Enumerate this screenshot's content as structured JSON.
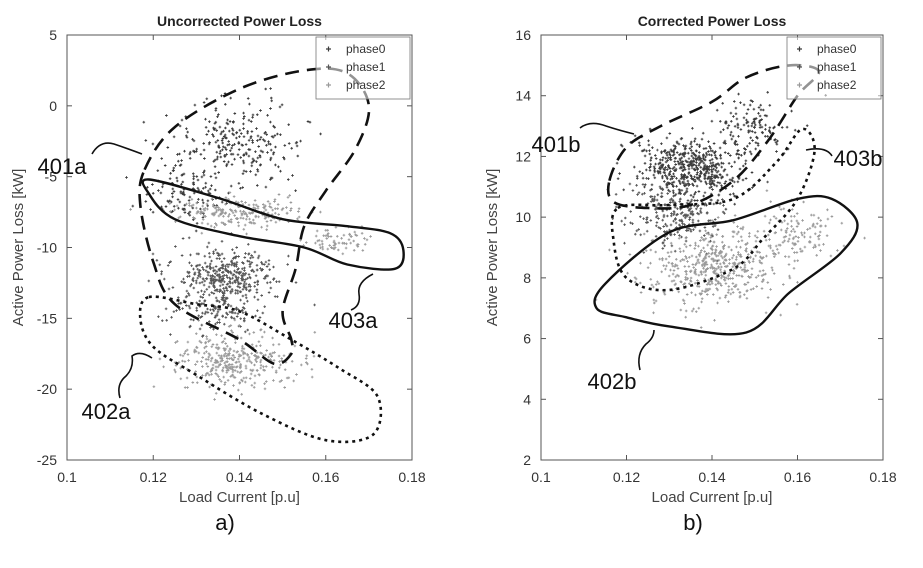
{
  "chart_data": [
    {
      "type": "scatter",
      "title": "Uncorrected Power Loss",
      "xlabel": "Load Current [p.u]",
      "ylabel": "Active Power Loss [kW]",
      "xlim": [
        0.1,
        0.18
      ],
      "ylim": [
        -25,
        5
      ],
      "xticks": [
        0.1,
        0.12,
        0.14,
        0.16,
        0.18
      ],
      "yticks": [
        -25,
        -20,
        -15,
        -10,
        -5,
        0,
        5
      ],
      "legend": {
        "position": "top-right",
        "entries": [
          "phase0",
          "phase1",
          "phase2"
        ]
      },
      "series": [
        {
          "name": "phase0",
          "color": "#3a3a3a",
          "clusters": [
            {
              "center": [
                0.14,
                -2.5
              ],
              "spread": [
                0.014,
                2.8
              ],
              "n": 260
            },
            {
              "center": [
                0.128,
                -6
              ],
              "spread": [
                0.008,
                2.0
              ],
              "n": 120
            }
          ]
        },
        {
          "name": "phase1",
          "color": "#555555",
          "clusters": [
            {
              "center": [
                0.137,
                -12
              ],
              "spread": [
                0.011,
                1.6
              ],
              "n": 380
            },
            {
              "center": [
                0.135,
                -14.5
              ],
              "spread": [
                0.01,
                1.3
              ],
              "n": 140
            }
          ]
        },
        {
          "name": "phase2",
          "color": "#9a9a9a",
          "clusters": [
            {
              "center": [
                0.138,
                -18
              ],
              "spread": [
                0.012,
                1.8
              ],
              "n": 340
            },
            {
              "center": [
                0.14,
                -7.5
              ],
              "spread": [
                0.014,
                0.9
              ],
              "n": 220
            },
            {
              "center": [
                0.163,
                -9.5
              ],
              "spread": [
                0.007,
                0.8
              ],
              "n": 70
            }
          ]
        }
      ],
      "annotations": [
        {
          "label": "401a",
          "style": "dashed",
          "x": 0.105,
          "y": -4.0
        },
        {
          "label": "402a",
          "style": "dotted",
          "x": 0.113,
          "y": -21.2
        },
        {
          "label": "403a",
          "style": "solid",
          "x": 0.1565,
          "y": -16.4
        }
      ],
      "regions": [
        {
          "style": "dashed",
          "points": [
            [
              0.118,
              -4.5
            ],
            [
              0.125,
              -1.5
            ],
            [
              0.14,
              1.2
            ],
            [
              0.155,
              2.5
            ],
            [
              0.165,
              2.3
            ],
            [
              0.17,
              0
            ],
            [
              0.167,
              -3
            ],
            [
              0.16,
              -6
            ],
            [
              0.155,
              -8.5
            ],
            [
              0.153,
              -11.5
            ],
            [
              0.15,
              -14.5
            ],
            [
              0.152,
              -16.5
            ],
            [
              0.152,
              -17.5
            ],
            [
              0.148,
              -18.2
            ],
            [
              0.14,
              -16.5
            ],
            [
              0.125,
              -14
            ],
            [
              0.12,
              -11
            ],
            [
              0.117,
              -7
            ]
          ]
        },
        {
          "style": "dotted",
          "points": [
            [
              0.119,
              -13.5
            ],
            [
              0.13,
              -14
            ],
            [
              0.14,
              -14.5
            ],
            [
              0.152,
              -16.5
            ],
            [
              0.163,
              -18.5
            ],
            [
              0.172,
              -20.5
            ],
            [
              0.171,
              -23.2
            ],
            [
              0.16,
              -23.6
            ],
            [
              0.145,
              -21.7
            ],
            [
              0.13,
              -19
            ],
            [
              0.12,
              -17
            ],
            [
              0.117,
              -15
            ]
          ]
        },
        {
          "style": "solid",
          "points": [
            [
              0.119,
              -5.2
            ],
            [
              0.135,
              -6.5
            ],
            [
              0.15,
              -8.0
            ],
            [
              0.165,
              -8.5
            ],
            [
              0.175,
              -9.0
            ],
            [
              0.178,
              -10.2
            ],
            [
              0.176,
              -11.5
            ],
            [
              0.165,
              -11.2
            ],
            [
              0.155,
              -10.0
            ],
            [
              0.14,
              -9.2
            ],
            [
              0.125,
              -8.0
            ],
            [
              0.119,
              -6.2
            ]
          ]
        }
      ],
      "panel_label": "a)"
    },
    {
      "type": "scatter",
      "title": "Corrected Power Loss",
      "xlabel": "Load Current [p.u]",
      "ylabel": "Active Power Loss [kW]",
      "xlim": [
        0.1,
        0.18
      ],
      "ylim": [
        2,
        16
      ],
      "xticks": [
        0.1,
        0.12,
        0.14,
        0.16,
        0.18
      ],
      "yticks": [
        2,
        4,
        6,
        8,
        10,
        12,
        14,
        16
      ],
      "legend": {
        "position": "top-right",
        "entries": [
          "phase0",
          "phase1",
          "phase2"
        ]
      },
      "series": [
        {
          "name": "phase0",
          "color": "#3a3a3a",
          "clusters": [
            {
              "center": [
                0.135,
                11.6
              ],
              "spread": [
                0.011,
                0.9
              ],
              "n": 520
            },
            {
              "center": [
                0.15,
                13.0
              ],
              "spread": [
                0.008,
                0.9
              ],
              "n": 130
            }
          ]
        },
        {
          "name": "phase1",
          "color": "#555555",
          "clusters": [
            {
              "center": [
                0.132,
                10.2
              ],
              "spread": [
                0.01,
                1.0
              ],
              "n": 260
            }
          ]
        },
        {
          "name": "phase2",
          "color": "#9a9a9a",
          "clusters": [
            {
              "center": [
                0.14,
                8.3
              ],
              "spread": [
                0.014,
                1.1
              ],
              "n": 480
            },
            {
              "center": [
                0.16,
                9.5
              ],
              "spread": [
                0.009,
                0.9
              ],
              "n": 120
            }
          ]
        }
      ],
      "annotations": [
        {
          "label": "401b",
          "style": "dashed",
          "x": 0.104,
          "y": 12.4
        },
        {
          "label": "402b",
          "style": "solid",
          "x": 0.1175,
          "y": 4.8
        },
        {
          "label": "403b",
          "style": "dotted",
          "x": 0.168,
          "y": 11.0
        }
      ],
      "regions": [
        {
          "style": "dashed",
          "points": [
            [
              0.116,
              11.2
            ],
            [
              0.12,
              12.3
            ],
            [
              0.128,
              13.0
            ],
            [
              0.14,
              13.8
            ],
            [
              0.148,
              14.6
            ],
            [
              0.158,
              15.0
            ],
            [
              0.165,
              14.8
            ],
            [
              0.16,
              14.0
            ],
            [
              0.153,
              12.5
            ],
            [
              0.145,
              11.2
            ],
            [
              0.135,
              10.4
            ],
            [
              0.125,
              10.3
            ],
            [
              0.117,
              10.5
            ]
          ]
        },
        {
          "style": "dotted",
          "points": [
            [
              0.118,
              10.3
            ],
            [
              0.13,
              10.4
            ],
            [
              0.145,
              10.6
            ],
            [
              0.155,
              11.8
            ],
            [
              0.161,
              12.9
            ],
            [
              0.164,
              12.2
            ],
            [
              0.16,
              10.6
            ],
            [
              0.152,
              9.3
            ],
            [
              0.145,
              8.3
            ],
            [
              0.13,
              7.6
            ],
            [
              0.12,
              8.0
            ],
            [
              0.117,
              9.2
            ]
          ]
        },
        {
          "style": "solid",
          "points": [
            [
              0.115,
              7.8
            ],
            [
              0.13,
              9.5
            ],
            [
              0.145,
              9.9
            ],
            [
              0.16,
              10.6
            ],
            [
              0.168,
              10.6
            ],
            [
              0.174,
              9.8
            ],
            [
              0.17,
              8.8
            ],
            [
              0.158,
              7.5
            ],
            [
              0.148,
              6.2
            ],
            [
              0.13,
              6.4
            ],
            [
              0.12,
              6.7
            ],
            [
              0.113,
              7.0
            ]
          ]
        }
      ],
      "panel_label": "b)"
    }
  ]
}
